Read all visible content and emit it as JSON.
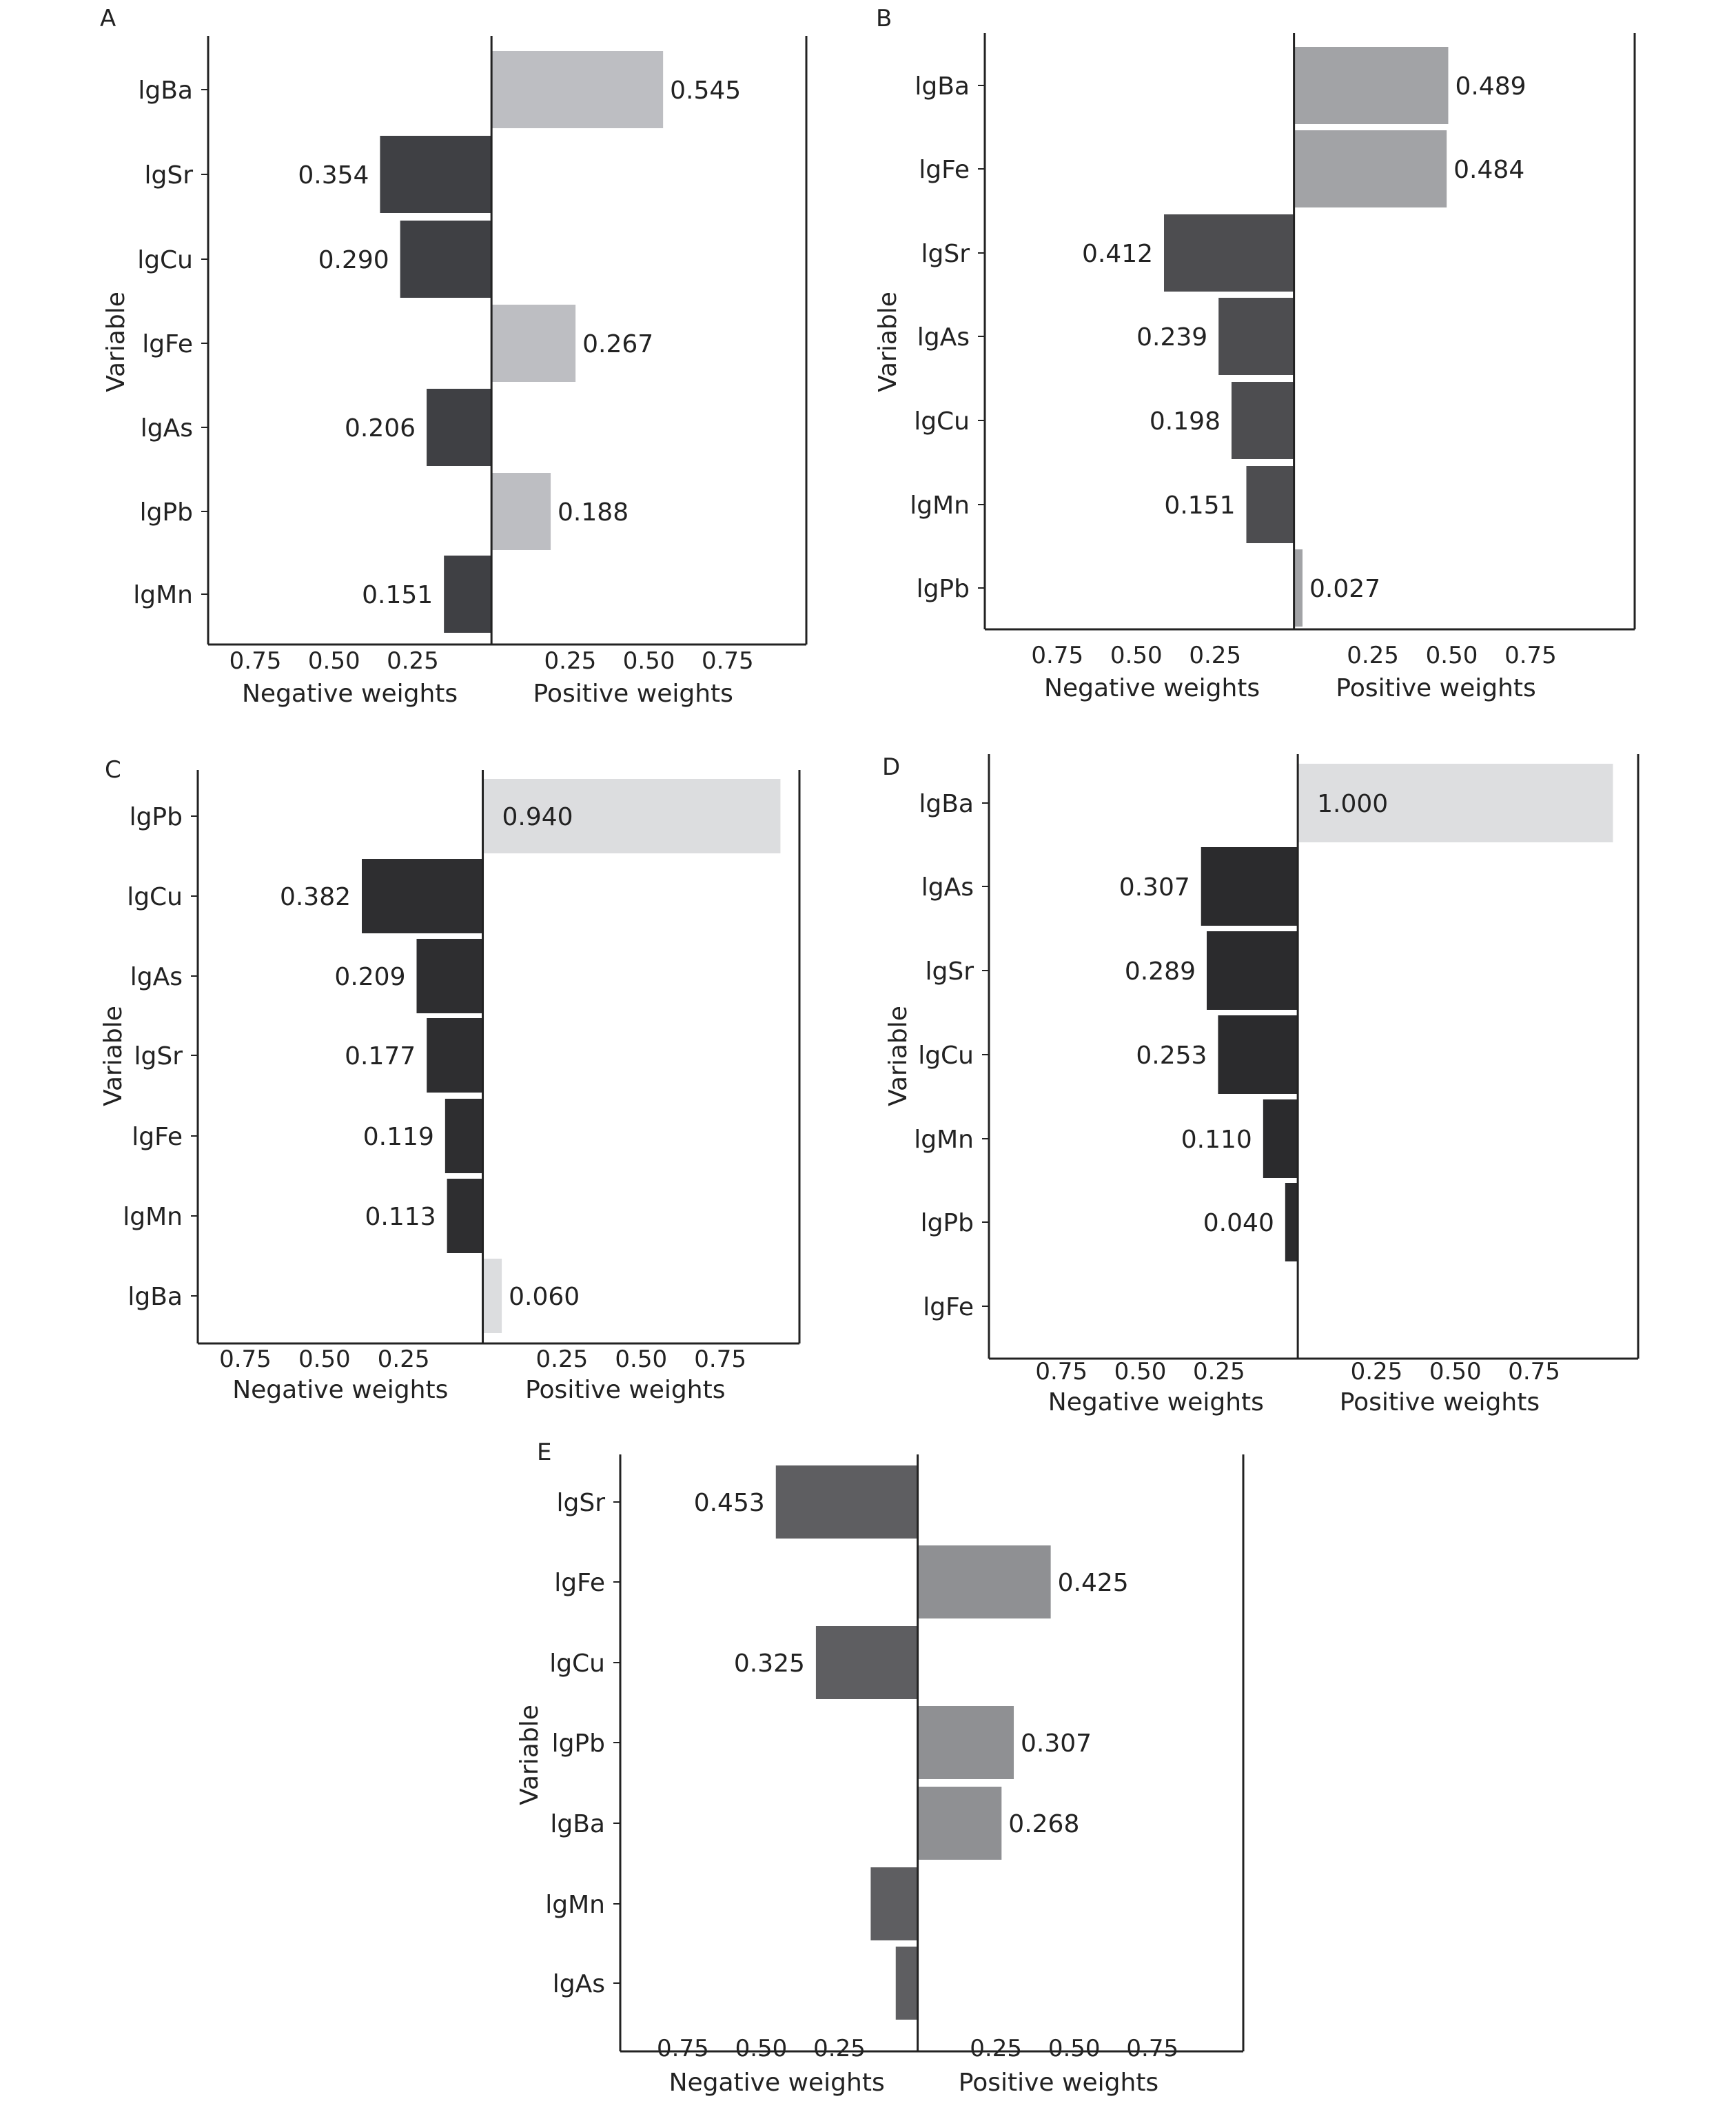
{
  "figure": {
    "text_color": "#222222",
    "axis_color": "#222222"
  },
  "chart_data": [
    {
      "type": "bar",
      "panel": "A",
      "ylabel": "Variable",
      "xlabel_negative": "Negative weights",
      "xlabel_positive": "Positive weights",
      "xticks": [
        "0.75",
        "0.50",
        "0.25",
        "0.25",
        "0.50",
        "0.75"
      ],
      "xlim": [
        -0.9,
        1.0
      ],
      "categories": [
        "lgBa",
        "lgSr",
        "lgCu",
        "lgFe",
        "lgAs",
        "lgPb",
        "lgMn"
      ],
      "values": [
        0.545,
        -0.354,
        -0.29,
        0.267,
        -0.206,
        0.188,
        -0.151
      ],
      "labels": [
        "0.545",
        "0.354",
        "0.290",
        "0.267",
        "0.206",
        "0.188",
        "0.151"
      ],
      "neg_color": "#3f4044",
      "pos_color": "#bdbec2"
    },
    {
      "type": "bar",
      "panel": "B",
      "ylabel": "Variable",
      "xlabel_negative": "Negative weights",
      "xlabel_positive": "Positive weights",
      "xticks": [
        "0.75",
        "0.50",
        "0.25",
        "0.25",
        "0.50",
        "0.75"
      ],
      "xlim": [
        -0.98,
        1.08
      ],
      "categories": [
        "lgBa",
        "lgFe",
        "lgSr",
        "lgAs",
        "lgCu",
        "lgMn",
        "lgPb"
      ],
      "values": [
        0.489,
        0.484,
        -0.412,
        -0.239,
        -0.198,
        -0.151,
        0.027
      ],
      "labels": [
        "0.489",
        "0.484",
        "0.412",
        "0.239",
        "0.198",
        "0.151",
        "0.027"
      ],
      "neg_color": "#4d4d50",
      "pos_color": "#a2a3a6"
    },
    {
      "type": "bar",
      "panel": "C",
      "ylabel": "Variable",
      "xlabel_negative": "Negative weights",
      "xlabel_positive": "Positive weights",
      "xticks": [
        "0.75",
        "0.50",
        "0.25",
        "0.25",
        "0.50",
        "0.75"
      ],
      "xlim": [
        -0.9,
        1.0
      ],
      "categories": [
        "lgPb",
        "lgCu",
        "lgAs",
        "lgSr",
        "lgFe",
        "lgMn",
        "lgBa"
      ],
      "values": [
        0.94,
        -0.382,
        -0.209,
        -0.177,
        -0.119,
        -0.113,
        0.06
      ],
      "labels": [
        "0.940",
        "0.382",
        "0.209",
        "0.177",
        "0.119",
        "0.113",
        "0.060"
      ],
      "neg_color": "#2e2e30",
      "pos_color": "#dcdddf"
    },
    {
      "type": "bar",
      "panel": "D",
      "ylabel": "Variable",
      "xlabel_negative": "Negative weights",
      "xlabel_positive": "Positive weights",
      "xticks": [
        "0.75",
        "0.50",
        "0.25",
        "0.25",
        "0.50",
        "0.75"
      ],
      "xlim": [
        -0.98,
        1.08
      ],
      "categories": [
        "lgBa",
        "lgAs",
        "lgSr",
        "lgCu",
        "lgMn",
        "lgPb",
        "lgFe"
      ],
      "values": [
        1.0,
        -0.307,
        -0.289,
        -0.253,
        -0.11,
        -0.04,
        0
      ],
      "labels": [
        "1.000",
        "0.307",
        "0.289",
        "0.253",
        "0.110",
        "0.040",
        ""
      ],
      "neg_color": "#2b2b2d",
      "pos_color": "#dddee0"
    },
    {
      "type": "bar",
      "panel": "E",
      "ylabel": "Variable",
      "xlabel_negative": "Negative weights",
      "xlabel_positive": "Positive weights",
      "xticks": [
        "0.75",
        "0.50",
        "0.25",
        "0.25",
        "0.50",
        "0.75"
      ],
      "xlim": [
        -0.95,
        1.04
      ],
      "categories": [
        "lgSr",
        "lgFe",
        "lgCu",
        "lgPb",
        "lgBa",
        "lgMn",
        "lgAs"
      ],
      "values": [
        -0.453,
        0.425,
        -0.325,
        0.307,
        0.268,
        -0.15,
        -0.07
      ],
      "labels": [
        "0.453",
        "0.425",
        "0.325",
        "0.307",
        "0.268",
        "",
        ""
      ],
      "neg_color": "#5e5e61",
      "pos_color": "#8f9093"
    }
  ]
}
